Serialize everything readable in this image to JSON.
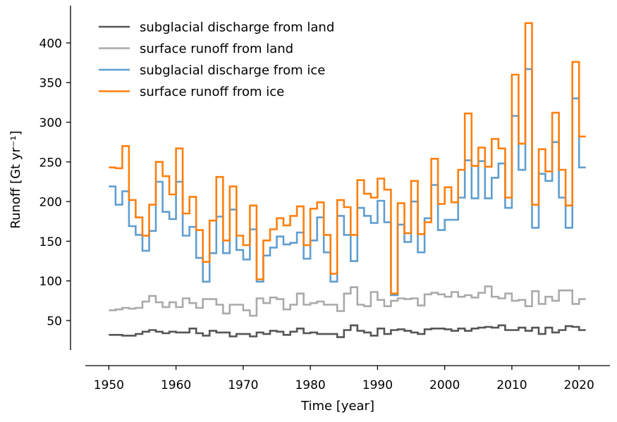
{
  "chart_data": {
    "type": "line",
    "step": "post",
    "xlabel": "Time [year]",
    "ylabel": "Runoff [Gt yr⁻¹]",
    "xlim": [
      1946.5,
      2024.6
    ],
    "ylim": [
      12.7,
      447
    ],
    "xticks": [
      1950,
      1960,
      1970,
      1980,
      1990,
      2000,
      2010,
      2020
    ],
    "yticks": [
      50,
      100,
      150,
      200,
      250,
      300,
      350,
      400
    ],
    "grid": false,
    "legend_position": "top-left",
    "x_start": 1950,
    "series": [
      {
        "name": "subglacial discharge from land",
        "color": "#555555",
        "values": [
          32,
          32,
          31,
          31,
          33,
          36,
          38,
          36,
          34,
          36,
          35,
          35,
          40,
          34,
          31,
          37,
          35,
          35,
          30,
          33,
          33,
          30,
          35,
          33,
          37,
          36,
          32,
          36,
          40,
          34,
          35,
          33,
          33,
          33,
          29,
          38,
          44,
          37,
          35,
          31,
          40,
          33,
          38,
          39,
          37,
          35,
          33,
          39,
          40,
          40,
          39,
          37,
          40,
          37,
          40,
          41,
          42,
          41,
          44,
          38,
          38,
          41,
          37,
          41,
          33,
          41,
          35,
          38,
          43,
          42,
          38
        ]
      },
      {
        "name": "surface runoff from land",
        "color": "#aaaaaa",
        "values": [
          63,
          64,
          66,
          65,
          66,
          74,
          81,
          73,
          67,
          73,
          67,
          78,
          72,
          66,
          77,
          77,
          70,
          59,
          70,
          70,
          63,
          56,
          78,
          72,
          79,
          77,
          64,
          70,
          84,
          70,
          72,
          74,
          70,
          70,
          62,
          84,
          92,
          70,
          68,
          86,
          76,
          68,
          75,
          78,
          77,
          78,
          69,
          83,
          85,
          83,
          80,
          86,
          80,
          82,
          79,
          85,
          93,
          80,
          78,
          84,
          75,
          76,
          68,
          87,
          71,
          80,
          75,
          88,
          88,
          71,
          77
        ]
      },
      {
        "name": "subglacial discharge from ice",
        "color": "#5f9ed1",
        "values": [
          219,
          196,
          213,
          169,
          158,
          138,
          163,
          225,
          187,
          178,
          225,
          157,
          168,
          129,
          99,
          135,
          181,
          135,
          190,
          139,
          127,
          165,
          99,
          132,
          142,
          156,
          146,
          148,
          161,
          128,
          151,
          180,
          136,
          99,
          182,
          158,
          125,
          192,
          182,
          173,
          201,
          174,
          82,
          171,
          149,
          200,
          136,
          179,
          221,
          164,
          177,
          177,
          205,
          252,
          204,
          251,
          204,
          230,
          248,
          192,
          308,
          240,
          367,
          167,
          235,
          226,
          275,
          205,
          167,
          330,
          243
        ]
      },
      {
        "name": "surface runoff from ice",
        "color": "#ff7f0e",
        "values": [
          243,
          242,
          270,
          202,
          180,
          157,
          196,
          250,
          232,
          209,
          267,
          185,
          206,
          164,
          124,
          176,
          231,
          151,
          219,
          157,
          145,
          195,
          102,
          151,
          165,
          179,
          170,
          182,
          194,
          145,
          191,
          199,
          158,
          109,
          202,
          193,
          158,
          227,
          210,
          205,
          229,
          215,
          84,
          198,
          160,
          226,
          159,
          174,
          254,
          197,
          218,
          199,
          240,
          311,
          245,
          268,
          244,
          279,
          267,
          205,
          360,
          273,
          425,
          196,
          266,
          238,
          312,
          240,
          195,
          376,
          282
        ]
      }
    ]
  }
}
